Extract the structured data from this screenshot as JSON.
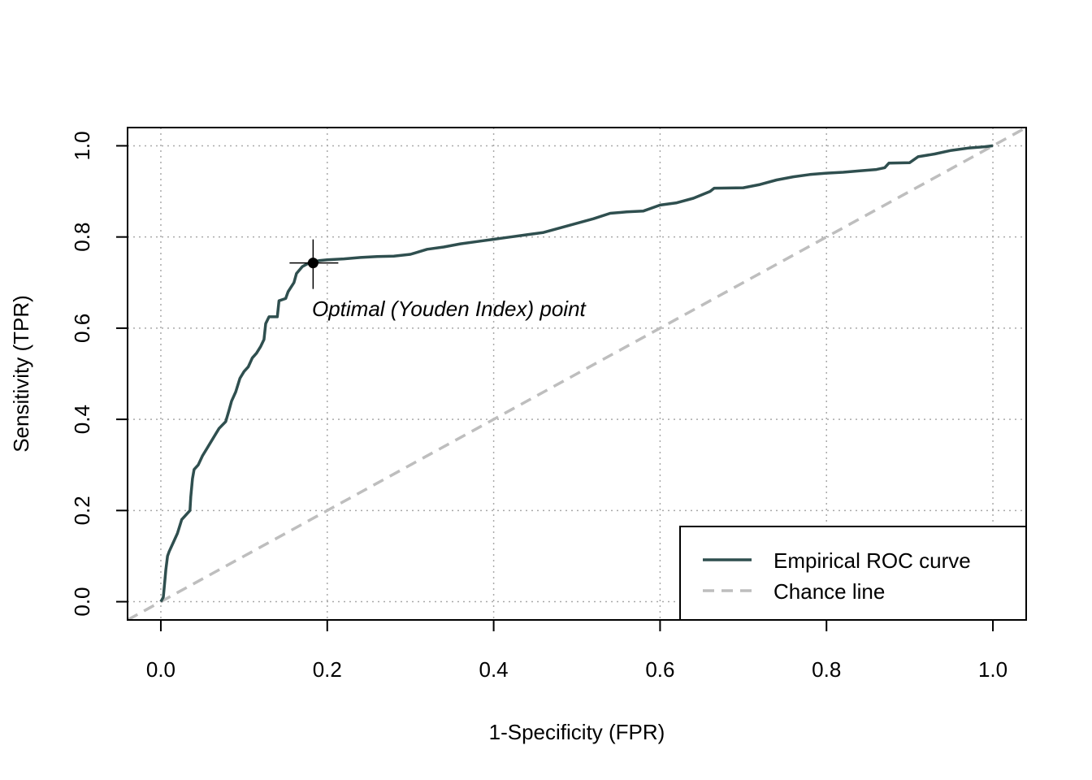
{
  "chart_data": {
    "type": "line",
    "title": "",
    "xlabel": "1-Specificity (FPR)",
    "ylabel": "Sensitivity (TPR)",
    "xlim": [
      -0.04,
      1.04
    ],
    "ylim": [
      -0.04,
      1.04
    ],
    "x_ticks": [
      0.0,
      0.2,
      0.4,
      0.6,
      0.8,
      1.0
    ],
    "x_tick_labels": [
      "0.0",
      "0.2",
      "0.4",
      "0.6",
      "0.8",
      "1.0"
    ],
    "y_ticks": [
      0.0,
      0.2,
      0.4,
      0.6,
      0.8,
      1.0
    ],
    "y_tick_labels": [
      "0.0",
      "0.2",
      "0.4",
      "0.6",
      "0.8",
      "1.0"
    ],
    "grid": true,
    "legend_position": "bottom-right",
    "series": [
      {
        "name": "Empirical ROC curve",
        "color": "#2f4f4f",
        "style": "solid",
        "x": [
          0.0,
          0.003,
          0.005,
          0.006,
          0.008,
          0.01,
          0.015,
          0.02,
          0.025,
          0.03,
          0.035,
          0.036,
          0.038,
          0.04,
          0.045,
          0.05,
          0.06,
          0.07,
          0.078,
          0.082,
          0.085,
          0.09,
          0.095,
          0.1,
          0.105,
          0.11,
          0.115,
          0.12,
          0.124,
          0.126,
          0.13,
          0.14,
          0.142,
          0.15,
          0.153,
          0.16,
          0.163,
          0.17,
          0.175,
          0.18,
          0.183,
          0.19,
          0.2,
          0.22,
          0.24,
          0.26,
          0.28,
          0.3,
          0.32,
          0.34,
          0.36,
          0.38,
          0.4,
          0.42,
          0.44,
          0.46,
          0.48,
          0.5,
          0.52,
          0.54,
          0.56,
          0.58,
          0.6,
          0.62,
          0.64,
          0.66,
          0.665,
          0.7,
          0.72,
          0.74,
          0.76,
          0.78,
          0.8,
          0.82,
          0.84,
          0.86,
          0.87,
          0.875,
          0.9,
          0.91,
          0.93,
          0.95,
          0.97,
          0.99,
          1.0
        ],
        "y": [
          0.0,
          0.01,
          0.05,
          0.07,
          0.1,
          0.11,
          0.13,
          0.15,
          0.18,
          0.19,
          0.2,
          0.23,
          0.27,
          0.29,
          0.3,
          0.32,
          0.35,
          0.38,
          0.395,
          0.42,
          0.44,
          0.46,
          0.49,
          0.505,
          0.515,
          0.535,
          0.545,
          0.56,
          0.575,
          0.61,
          0.625,
          0.625,
          0.66,
          0.665,
          0.68,
          0.7,
          0.72,
          0.735,
          0.74,
          0.745,
          0.745,
          0.748,
          0.75,
          0.752,
          0.755,
          0.757,
          0.758,
          0.762,
          0.773,
          0.778,
          0.785,
          0.79,
          0.795,
          0.8,
          0.805,
          0.81,
          0.82,
          0.83,
          0.84,
          0.852,
          0.855,
          0.857,
          0.87,
          0.875,
          0.885,
          0.9,
          0.907,
          0.908,
          0.915,
          0.925,
          0.932,
          0.937,
          0.94,
          0.942,
          0.945,
          0.948,
          0.952,
          0.962,
          0.963,
          0.976,
          0.982,
          0.99,
          0.995,
          0.998,
          1.0
        ]
      },
      {
        "name": "Chance line",
        "color": "#bebebe",
        "style": "dashed",
        "x": [
          -0.04,
          1.04
        ],
        "y": [
          -0.04,
          1.04
        ]
      }
    ],
    "optimal_point": {
      "x": 0.183,
      "y": 0.743,
      "label": "Optimal (Youden Index) point"
    }
  }
}
